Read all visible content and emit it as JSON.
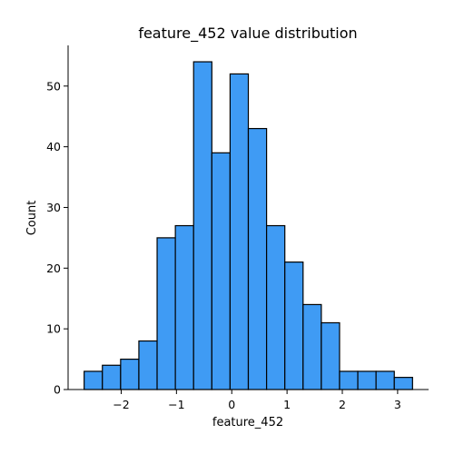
{
  "chart_data": {
    "type": "bar",
    "title": "feature_452 value distribution",
    "xlabel": "feature_452",
    "ylabel": "Count",
    "bin_edges": [
      -2.67,
      -2.34,
      -2.01,
      -1.68,
      -1.35,
      -1.02,
      -0.69,
      -0.36,
      -0.03,
      0.3,
      0.63,
      0.96,
      1.29,
      1.62,
      1.95,
      2.28,
      2.61,
      2.94,
      3.27
    ],
    "values": [
      3,
      4,
      5,
      8,
      25,
      27,
      54,
      39,
      52,
      43,
      27,
      21,
      14,
      11,
      3,
      3,
      3,
      2
    ],
    "xlim": [
      -2.96,
      3.56
    ],
    "ylim": [
      0,
      56.7
    ],
    "xticks": [
      -2,
      -1,
      0,
      1,
      2,
      3
    ],
    "xtick_labels": [
      "−2",
      "−1",
      "0",
      "1",
      "2",
      "3"
    ],
    "yticks": [
      0,
      10,
      20,
      30,
      40,
      50
    ],
    "ytick_labels": [
      "0",
      "10",
      "20",
      "30",
      "40",
      "50"
    ],
    "bar_color": "#3f9bf4",
    "edge_color": "#000000",
    "grid": false,
    "legend": false
  }
}
